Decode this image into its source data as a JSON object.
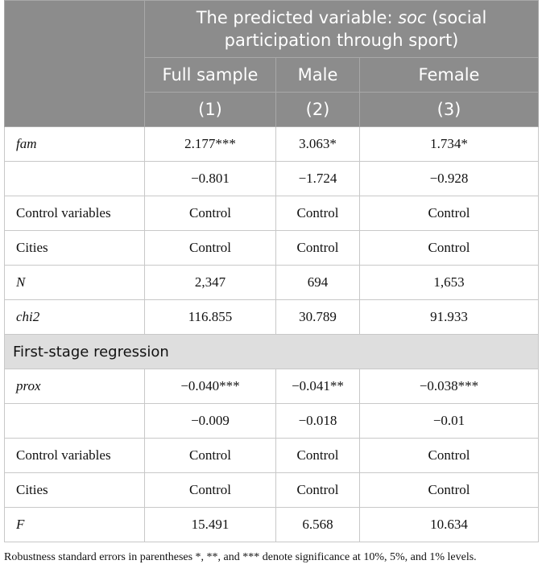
{
  "table": {
    "header": {
      "title_parts": [
        "The predicted variable: ",
        "soc",
        " (social participation through sport)"
      ],
      "columns": [
        "Full sample",
        "Male",
        "Female"
      ],
      "numbers": [
        "(1)",
        "(2)",
        "(3)"
      ]
    },
    "sections": [
      {
        "rows": [
          {
            "label": "fam",
            "values": [
              "2.177***",
              "3.063*",
              "1.734*"
            ]
          },
          {
            "label": null,
            "values": [
              "−0.801",
              "−1.724",
              "−0.928"
            ]
          },
          {
            "label": "Control variables",
            "values": [
              "Control",
              "Control",
              "Control"
            ]
          },
          {
            "label": "Cities",
            "values": [
              "Control",
              "Control",
              "Control"
            ]
          },
          {
            "label": "N",
            "values": [
              "2,347",
              "694",
              "1,653"
            ]
          },
          {
            "label": "chi2",
            "values": [
              "116.855",
              "30.789",
              "91.933"
            ]
          }
        ]
      },
      {
        "title": "First-stage regression",
        "rows": [
          {
            "label": "prox",
            "values": [
              "−0.040***",
              "−0.041**",
              "−0.038***"
            ]
          },
          {
            "label": null,
            "values": [
              "−0.009",
              "−0.018",
              "−0.01"
            ]
          },
          {
            "label": "Control variables",
            "values": [
              "Control",
              "Control",
              "Control"
            ]
          },
          {
            "label": "Cities",
            "values": [
              "Control",
              "Control",
              "Control"
            ]
          },
          {
            "label": "F",
            "values": [
              "15.491",
              "6.568",
              "10.634"
            ]
          }
        ]
      }
    ],
    "footnote": "Robustness standard errors in parentheses *, **, and *** denote significance at 10%, 5%, and 1% levels."
  }
}
